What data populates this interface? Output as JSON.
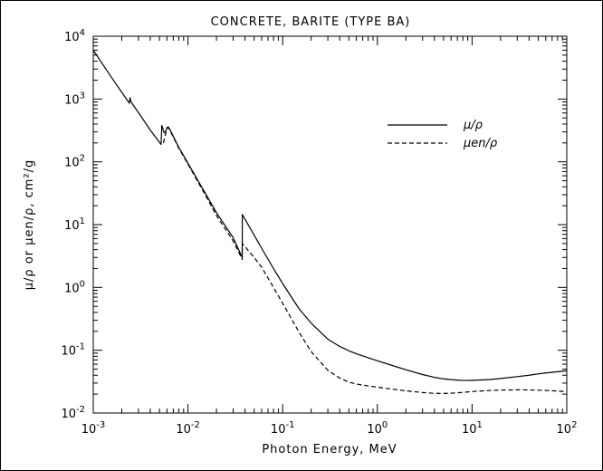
{
  "chart_data": {
    "type": "line",
    "title": "CONCRETE, BARITE (TYPE BA)",
    "xlabel": "Photon Energy, MeV",
    "ylabel": "μ/ρ or μen/ρ, cm²/g",
    "x_scale": "log",
    "y_scale": "log",
    "xlim": [
      0.001,
      100
    ],
    "ylim": [
      0.01,
      10000
    ],
    "x_ticks": [
      {
        "value": 0.001,
        "base": "10",
        "exp": "-3"
      },
      {
        "value": 0.01,
        "base": "10",
        "exp": "-2"
      },
      {
        "value": 0.1,
        "base": "10",
        "exp": "-1"
      },
      {
        "value": 1,
        "base": "10",
        "exp": "0"
      },
      {
        "value": 10,
        "base": "10",
        "exp": "1"
      },
      {
        "value": 100,
        "base": "10",
        "exp": "2"
      }
    ],
    "y_ticks": [
      {
        "value": 0.01,
        "base": "10",
        "exp": "-2"
      },
      {
        "value": 0.1,
        "base": "10",
        "exp": "-1"
      },
      {
        "value": 1,
        "base": "10",
        "exp": "0"
      },
      {
        "value": 10,
        "base": "10",
        "exp": "1"
      },
      {
        "value": 100,
        "base": "10",
        "exp": "2"
      },
      {
        "value": 1000,
        "base": "10",
        "exp": "3"
      },
      {
        "value": 10000,
        "base": "10",
        "exp": "4"
      }
    ],
    "legend_position": "upper-right",
    "series": [
      {
        "name": "μ/ρ",
        "style": "solid",
        "points": [
          [
            0.001,
            6000
          ],
          [
            0.0015,
            2400
          ],
          [
            0.0024,
            860
          ],
          [
            0.00245,
            1050
          ],
          [
            0.0025,
            900
          ],
          [
            0.003,
            610
          ],
          [
            0.004,
            320
          ],
          [
            0.0052,
            190
          ],
          [
            0.0053,
            380
          ],
          [
            0.0056,
            290
          ],
          [
            0.0058,
            300
          ],
          [
            0.006,
            350
          ],
          [
            0.0062,
            360
          ],
          [
            0.0065,
            320
          ],
          [
            0.008,
            170
          ],
          [
            0.01,
            95
          ],
          [
            0.015,
            33
          ],
          [
            0.02,
            15.5
          ],
          [
            0.03,
            6.2
          ],
          [
            0.0374,
            3.0
          ],
          [
            0.0375,
            14.5
          ],
          [
            0.05,
            6.8
          ],
          [
            0.06,
            4.2
          ],
          [
            0.08,
            2.0
          ],
          [
            0.1,
            1.15
          ],
          [
            0.15,
            0.45
          ],
          [
            0.2,
            0.27
          ],
          [
            0.3,
            0.15
          ],
          [
            0.4,
            0.115
          ],
          [
            0.5,
            0.098
          ],
          [
            0.6,
            0.088
          ],
          [
            0.8,
            0.076
          ],
          [
            1,
            0.068
          ],
          [
            1.5,
            0.056
          ],
          [
            2,
            0.049
          ],
          [
            3,
            0.041
          ],
          [
            4,
            0.037
          ],
          [
            5,
            0.035
          ],
          [
            6,
            0.034
          ],
          [
            8,
            0.033
          ],
          [
            10,
            0.0332
          ],
          [
            15,
            0.034
          ],
          [
            20,
            0.0355
          ],
          [
            30,
            0.038
          ],
          [
            40,
            0.04
          ],
          [
            50,
            0.042
          ],
          [
            60,
            0.0435
          ],
          [
            80,
            0.0455
          ],
          [
            100,
            0.047
          ]
        ]
      },
      {
        "name": "μen/ρ",
        "style": "dashed",
        "points": [
          [
            0.0055,
            200
          ],
          [
            0.006,
            340
          ],
          [
            0.0062,
            350
          ],
          [
            0.0065,
            310
          ],
          [
            0.008,
            165
          ],
          [
            0.01,
            92
          ],
          [
            0.015,
            31
          ],
          [
            0.02,
            14
          ],
          [
            0.03,
            5.5
          ],
          [
            0.0374,
            2.8
          ],
          [
            0.0375,
            5.0
          ],
          [
            0.05,
            3.0
          ],
          [
            0.06,
            2.1
          ],
          [
            0.08,
            1.0
          ],
          [
            0.1,
            0.56
          ],
          [
            0.15,
            0.19
          ],
          [
            0.2,
            0.095
          ],
          [
            0.3,
            0.048
          ],
          [
            0.4,
            0.036
          ],
          [
            0.5,
            0.031
          ],
          [
            0.6,
            0.029
          ],
          [
            0.8,
            0.027
          ],
          [
            1,
            0.0258
          ],
          [
            1.5,
            0.0238
          ],
          [
            2,
            0.0226
          ],
          [
            3,
            0.0212
          ],
          [
            4,
            0.0206
          ],
          [
            5,
            0.0205
          ],
          [
            6,
            0.0207
          ],
          [
            8,
            0.0213
          ],
          [
            10,
            0.022
          ],
          [
            15,
            0.0228
          ],
          [
            20,
            0.0232
          ],
          [
            30,
            0.0234
          ],
          [
            40,
            0.0233
          ],
          [
            50,
            0.0231
          ],
          [
            60,
            0.0229
          ],
          [
            80,
            0.0224
          ],
          [
            100,
            0.0218
          ]
        ]
      }
    ]
  }
}
